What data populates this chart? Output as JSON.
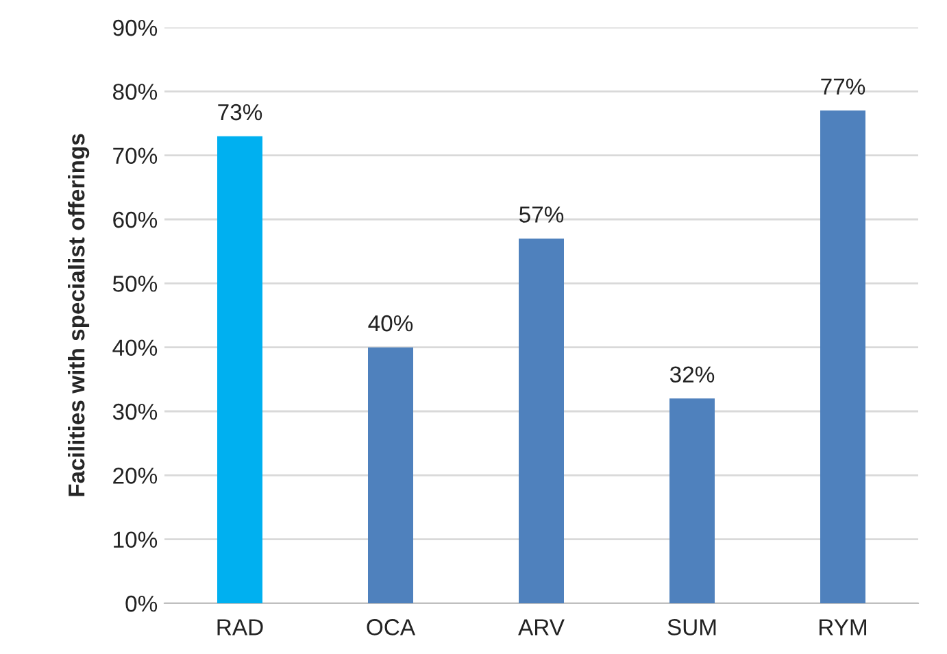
{
  "chart_data": {
    "type": "bar",
    "ylabel": "Facilities with specialist offerings",
    "categories": [
      "RAD",
      "OCA",
      "ARV",
      "SUM",
      "RYM"
    ],
    "values": [
      73,
      40,
      57,
      32,
      77
    ],
    "colors": [
      "#00b0f0",
      "#4f81bd",
      "#4f81bd",
      "#4f81bd",
      "#4f81bd"
    ],
    "value_labels": [
      "73%",
      "40%",
      "57%",
      "32%",
      "77%"
    ],
    "ylim": [
      0,
      90
    ],
    "yticks": [
      {
        "value": 0,
        "label": "0%"
      },
      {
        "value": 10,
        "label": "10%"
      },
      {
        "value": 20,
        "label": "20%"
      },
      {
        "value": 30,
        "label": "30%"
      },
      {
        "value": 40,
        "label": "40%"
      },
      {
        "value": 50,
        "label": "50%"
      },
      {
        "value": 60,
        "label": "60%"
      },
      {
        "value": 70,
        "label": "70%"
      },
      {
        "value": 80,
        "label": "80%"
      },
      {
        "value": 90,
        "label": "90%"
      }
    ],
    "grid": "y",
    "legend": false
  }
}
